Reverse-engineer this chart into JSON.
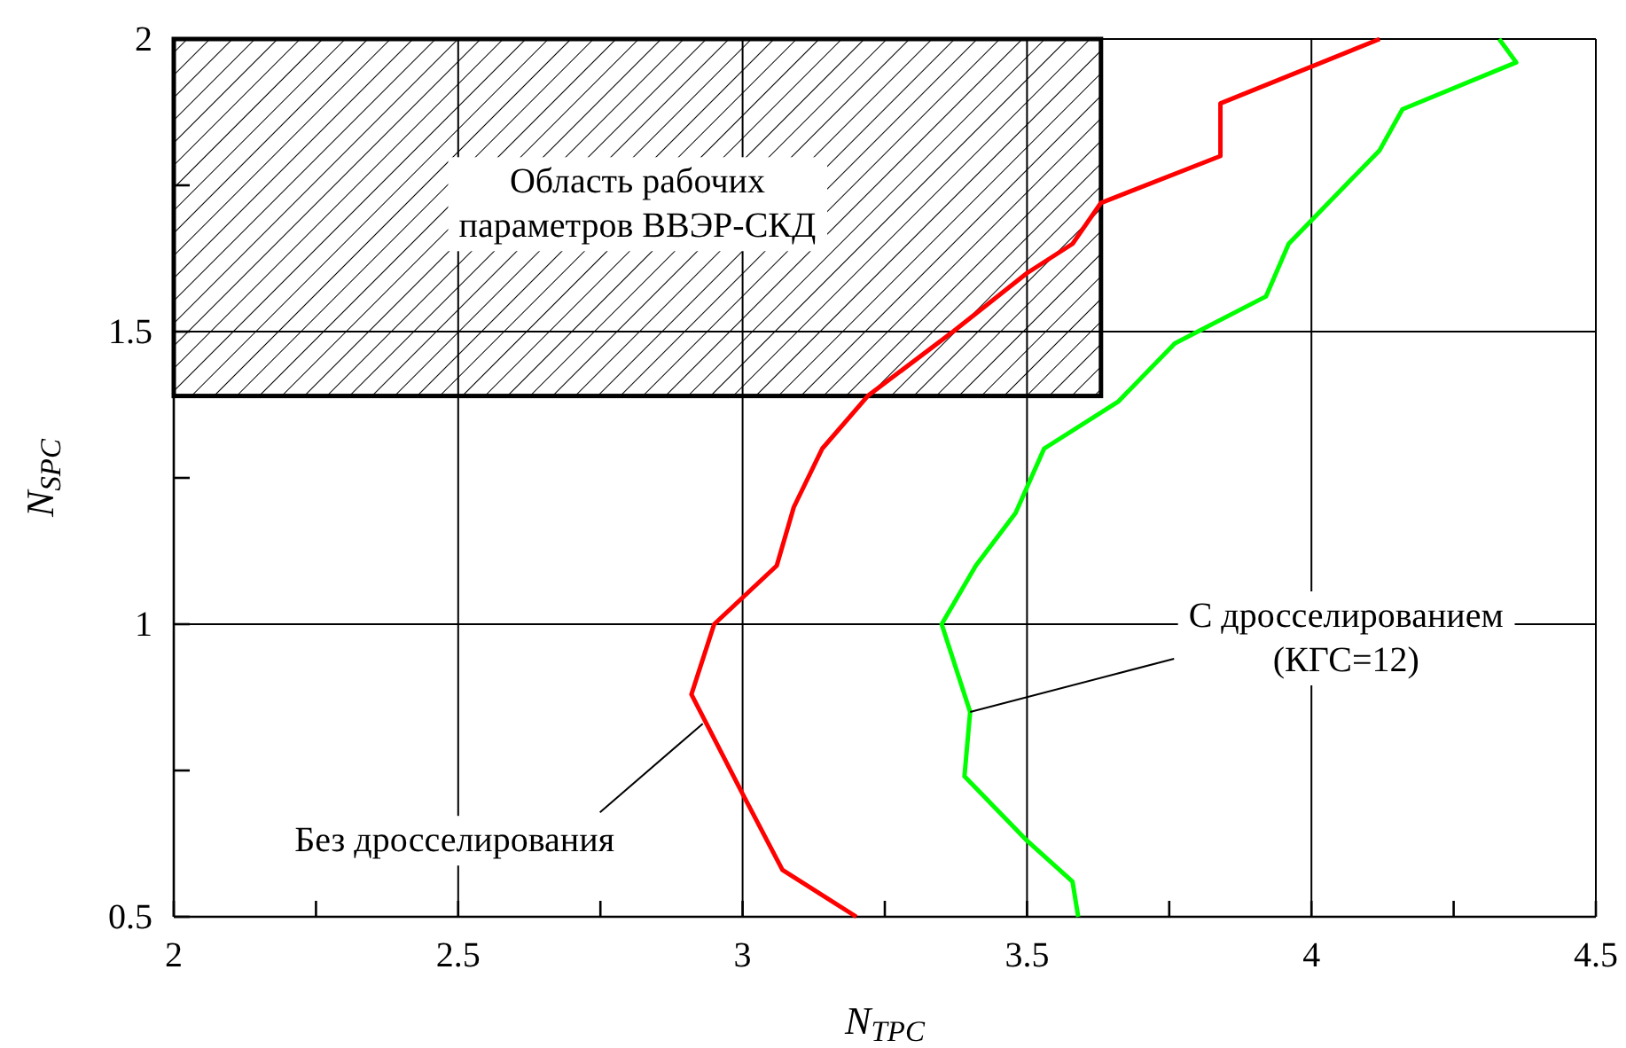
{
  "chart_data": {
    "type": "line",
    "xlabel": "N$_{TPC}$",
    "ylabel": "N$_{SPC}$",
    "xlim": [
      2,
      4.5
    ],
    "ylim": [
      0.5,
      2
    ],
    "xticks": [
      2,
      {
        "value": 2.25,
        "label": null
      },
      2.5,
      {
        "value": 2.75,
        "label": null
      },
      3,
      {
        "value": 3.25,
        "label": null
      },
      3.5,
      {
        "value": 3.75,
        "label": null
      },
      4,
      {
        "value": 4.25,
        "label": null
      },
      4.5
    ],
    "yticks": [
      0.5,
      {
        "value": 0.75,
        "label": null
      },
      1,
      {
        "value": 1.25,
        "label": null
      },
      1.5,
      {
        "value": 1.75,
        "label": null
      },
      2
    ],
    "grid": true,
    "marker": "none",
    "line_style": "solid",
    "bands": [
      {
        "axis": "y",
        "from": 1.39,
        "to": 2,
        "label": "Область рабочих\nпараметров ВВЭР-СКД",
        "color": "#000000"
      }
    ],
    "annotations": [
      {
        "text": "Без дросселирования",
        "x": 2.93,
        "y": 0.83
      },
      {
        "text": "С дросселированием\n(КГС=12)",
        "x": 3.4,
        "y": 0.85
      }
    ],
    "series": [
      {
        "color": "#ff0000",
        "x": [
          3.2,
          3.07,
          3.0,
          2.91,
          2.95,
          3.06,
          3.09,
          3.14,
          3.22,
          3.37,
          3.5,
          3.58,
          3.63,
          3.84,
          3.84,
          4.12
        ],
        "values": [
          0.5,
          0.58,
          0.71,
          0.88,
          1.0,
          1.1,
          1.2,
          1.3,
          1.39,
          1.5,
          1.6,
          1.65,
          1.72,
          1.8,
          1.89,
          2.0
        ]
      },
      {
        "color": "#00ff00",
        "x": [
          3.59,
          3.58,
          3.5,
          3.39,
          3.4,
          3.35,
          3.41,
          3.48,
          3.53,
          3.66,
          3.76,
          3.92,
          3.96,
          4.12,
          4.16,
          4.36,
          4.33
        ],
        "values": [
          0.5,
          0.56,
          0.63,
          0.74,
          0.85,
          1.0,
          1.1,
          1.19,
          1.3,
          1.38,
          1.48,
          1.56,
          1.65,
          1.81,
          1.88,
          1.96,
          2.0
        ]
      }
    ]
  }
}
